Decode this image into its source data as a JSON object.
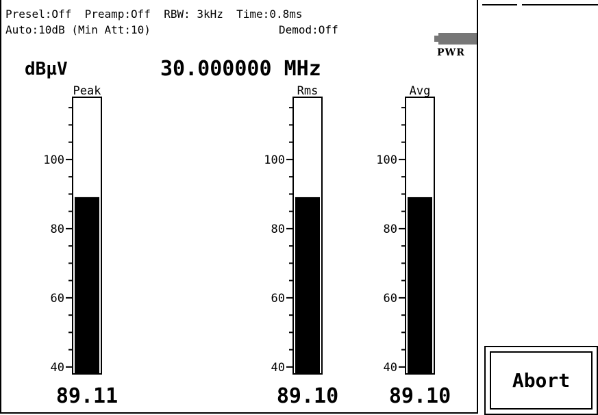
{
  "status": {
    "line1": "Presel:Off  Preamp:Off  RBW: 3kHz  Time:0.8ms",
    "line2": "Auto:10dB (Min Att:10)",
    "demod": "Demod:Off"
  },
  "power_label": "PWR",
  "unit": "dBµV",
  "frequency": "30.000000 MHz",
  "softkeys": {
    "abort_label": "Abort"
  },
  "colors": {
    "bar_fill": "#000000",
    "battery": "#777777"
  },
  "chart_data": {
    "type": "bar",
    "ylim": [
      38,
      118
    ],
    "major_ticks": [
      40,
      60,
      80,
      100
    ],
    "minor_step": 5,
    "series": [
      {
        "name": "Peak",
        "value": 89.11,
        "display": "89.11"
      },
      {
        "name": "Rms",
        "value": 89.1,
        "display": "89.10"
      },
      {
        "name": "Avg",
        "value": 89.1,
        "display": "89.10"
      }
    ]
  }
}
